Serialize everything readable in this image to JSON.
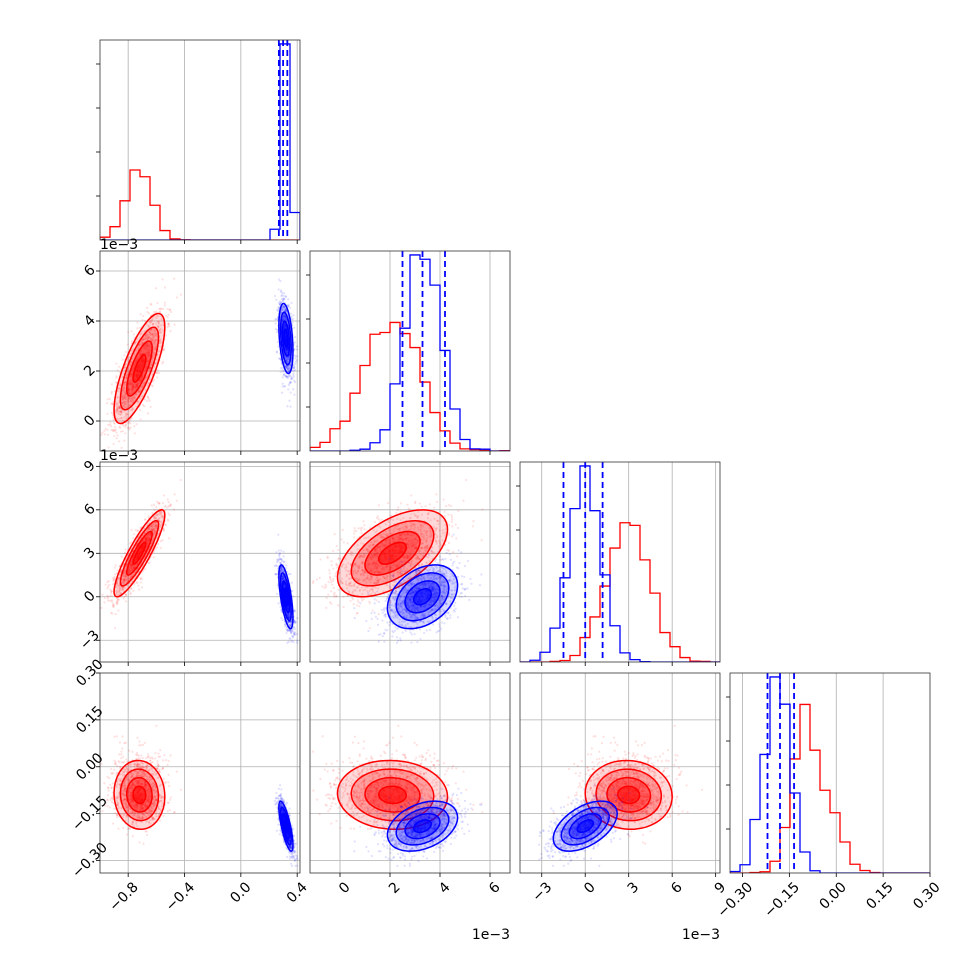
{
  "chart_data": {
    "type": "corner",
    "title": "",
    "parameters": [
      {
        "range": [
          -1.0,
          0.42
        ],
        "ticks": [
          -0.8,
          -0.4,
          0.0,
          0.4
        ],
        "tick_labels": [
          "−0.8",
          "−0.4",
          "0.0",
          "0.4"
        ],
        "exponent": ""
      },
      {
        "range": [
          -0.0012,
          0.0068
        ],
        "ticks": [
          0.0,
          0.002,
          0.004,
          0.006
        ],
        "tick_labels": [
          "0",
          "2",
          "4",
          "6"
        ],
        "exponent": "1e−3"
      },
      {
        "range": [
          -0.0045,
          0.0093
        ],
        "ticks": [
          -0.003,
          0.0,
          0.003,
          0.006,
          0.009
        ],
        "tick_labels": [
          "−3",
          "0",
          "3",
          "6",
          "9"
        ],
        "exponent": "1e−3"
      },
      {
        "range": [
          -0.34,
          0.3
        ],
        "ticks": [
          -0.3,
          -0.15,
          0.0,
          0.15,
          0.3
        ],
        "tick_labels": [
          "−0.30",
          "−0.15",
          "0.00",
          "0.15",
          "0.30"
        ],
        "exponent": ""
      }
    ],
    "series": [
      {
        "color": "#ff0000",
        "means": [
          -0.72,
          0.0021,
          0.003,
          -0.09
        ],
        "stds": [
          0.09,
          0.0011,
          0.0015,
          0.055
        ],
        "correlations": [
          [
            1,
            0.75,
            0.88,
            -0.05
          ],
          [
            0.75,
            1,
            0.55,
            -0.05
          ],
          [
            0.88,
            0.55,
            1,
            -0.05
          ],
          [
            -0.05,
            -0.05,
            -0.05,
            1
          ]
        ],
        "skew_last": 1.2,
        "quantile_lines": []
      },
      {
        "color": "#0000ff",
        "means": [
          0.32,
          0.0033,
          0.0,
          -0.19
        ],
        "stds": [
          0.025,
          0.0007,
          0.0011,
          0.04
        ],
        "correlations": [
          [
            1,
            -0.35,
            -0.65,
            -0.75
          ],
          [
            -0.35,
            1,
            0.35,
            0.35
          ],
          [
            -0.65,
            0.35,
            1,
            0.5
          ],
          [
            -0.75,
            0.35,
            0.5,
            1
          ]
        ],
        "skew_last": 0,
        "quantile_lines": [
          [
            0.27,
            0.3,
            0.33
          ],
          [
            0.0025,
            0.0033,
            0.0042
          ],
          [
            -0.0015,
            0.0,
            0.0012
          ],
          [
            -0.22,
            -0.18,
            -0.135
          ]
        ]
      }
    ],
    "grid": true,
    "legend": "none"
  }
}
